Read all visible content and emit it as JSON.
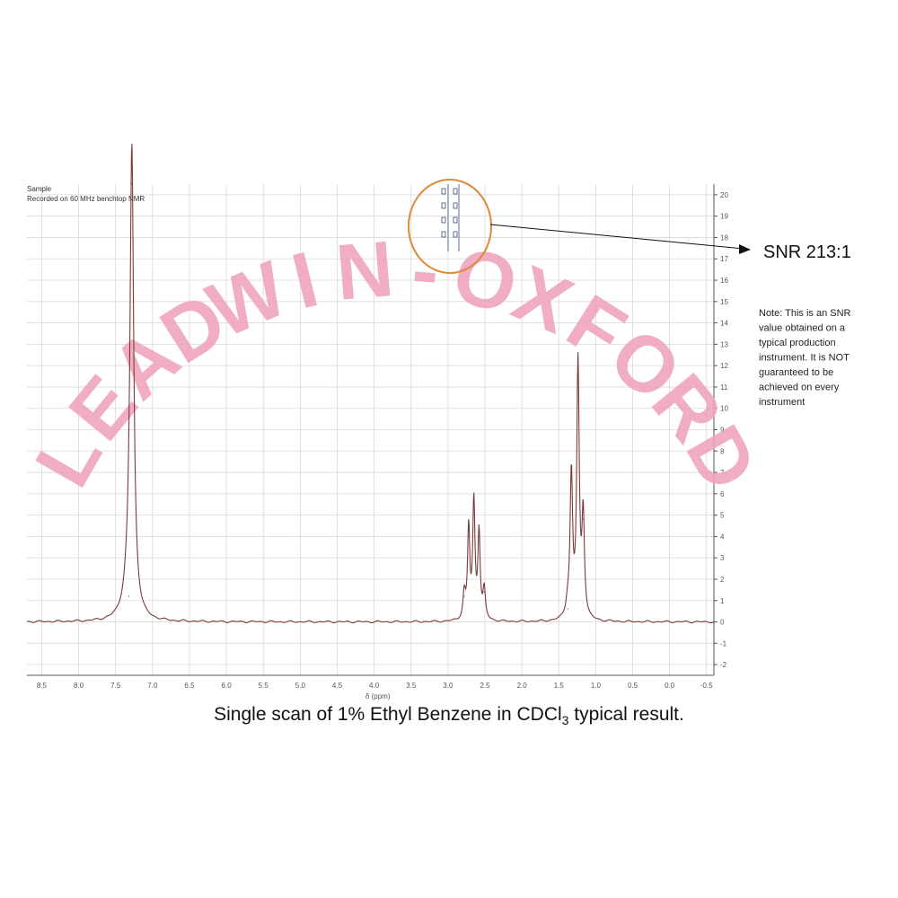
{
  "chart_data": {
    "type": "line",
    "header_lines": [
      "Sample",
      "Recorded on 60 MHz benchtop NMR"
    ],
    "x_axis": {
      "label": "δ (ppm)",
      "reversed": true,
      "range": [
        8.7,
        -0.6
      ],
      "ticks": [
        "8.5",
        "8.0",
        "7.5",
        "7.0",
        "6.5",
        "6.0",
        "5.5",
        "5.0",
        "4.5",
        "4.0",
        "3.5",
        "3.0",
        "2.5",
        "2.0",
        "1.5",
        "1.0",
        "0.5",
        "0.0",
        "-0.5"
      ]
    },
    "y_axis": {
      "side": "right",
      "range": [
        -2.5,
        20.5
      ],
      "ticks": [
        "20",
        "19",
        "18",
        "17",
        "16",
        "15",
        "14",
        "13",
        "12",
        "11",
        "10",
        "9",
        "8",
        "7",
        "6",
        "5",
        "4",
        "3",
        "2",
        "1",
        "0",
        "-1",
        "-2"
      ]
    },
    "grid": true,
    "baseline_y": 0,
    "series": [
      {
        "color": "#7a3a3a",
        "peaks": [
          {
            "x": 7.28,
            "height": 21.5,
            "width": 0.03
          },
          {
            "x": 7.32,
            "height": 1.2,
            "width": 0.08
          },
          {
            "x": 2.72,
            "height": 4.3,
            "width": 0.018
          },
          {
            "x": 2.65,
            "height": 5.5,
            "width": 0.018
          },
          {
            "x": 2.58,
            "height": 4.1,
            "width": 0.018
          },
          {
            "x": 2.78,
            "height": 1.2,
            "width": 0.02
          },
          {
            "x": 2.51,
            "height": 1.4,
            "width": 0.02
          },
          {
            "x": 1.33,
            "height": 6.7,
            "width": 0.02
          },
          {
            "x": 1.24,
            "height": 11.9,
            "width": 0.02
          },
          {
            "x": 1.17,
            "height": 4.8,
            "width": 0.02
          },
          {
            "x": 1.38,
            "height": 0.6,
            "width": 0.03
          }
        ]
      }
    ],
    "annotation": {
      "snr": "SNR 213:1",
      "note_lines": [
        "Note: This is an SNR",
        "value obtained on a",
        "typical production",
        "instrument. It is NOT",
        "guaranteed to be",
        "achieved on every",
        "instrument"
      ],
      "circle_color": "#d98a3a"
    },
    "watermark": "LEADWIN-OXFORD",
    "watermark_color": "#f0a2bb"
  },
  "caption": {
    "main": "Single scan of 1% Ethyl Benzene in CDCl",
    "subscript": "3",
    "tail": " typical result."
  }
}
